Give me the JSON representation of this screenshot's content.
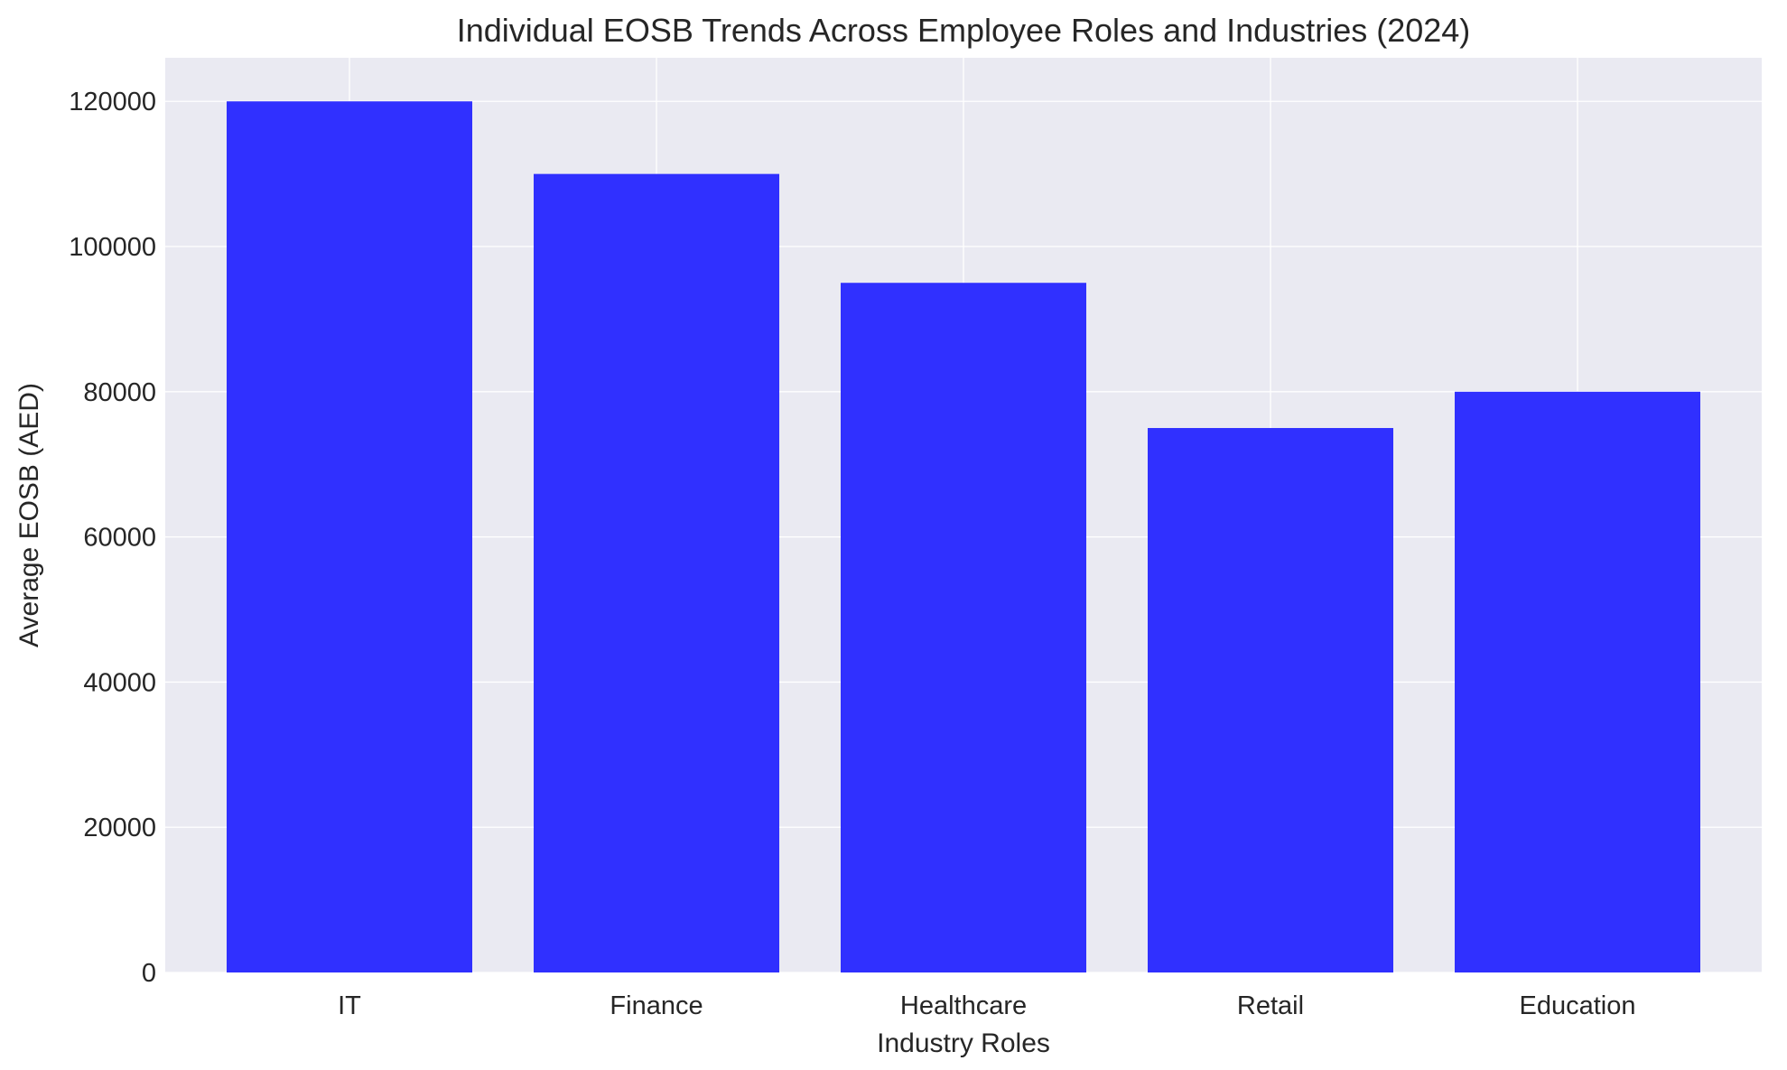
{
  "chart_data": {
    "type": "bar",
    "title": "Individual EOSB Trends Across Employee Roles and Industries (2024)",
    "xlabel": "Industry Roles",
    "ylabel": "Average EOSB (AED)",
    "categories": [
      "IT",
      "Finance",
      "Healthcare",
      "Retail",
      "Education"
    ],
    "values": [
      120000,
      110000,
      95000,
      75000,
      80000
    ],
    "ylim": [
      0,
      126000
    ],
    "yticks": [
      0,
      20000,
      40000,
      60000,
      80000,
      100000,
      120000
    ],
    "grid": true,
    "legend": "none",
    "colors": {
      "bar": "#3030ff",
      "plot_background": "#eaeaf2",
      "grid": "#ffffff"
    }
  }
}
